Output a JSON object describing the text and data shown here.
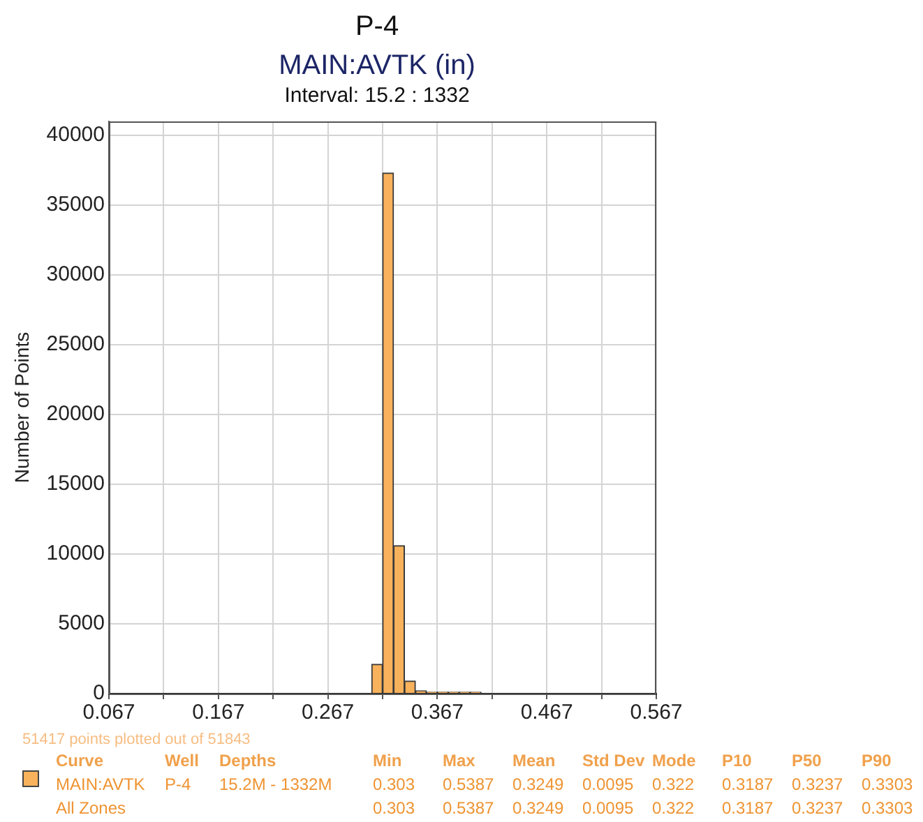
{
  "chart_data": {
    "type": "histogram",
    "title": "P-4",
    "subtitle": "MAIN:AVTK (in)",
    "ylabel": "Number of Points",
    "bins": [
      0.307,
      0.317,
      0.327,
      0.337,
      0.347,
      0.357,
      0.367,
      0.377,
      0.387,
      0.397,
      0.407
    ],
    "values": [
      2100,
      37300,
      10600,
      900,
      200,
      100,
      100,
      100,
      100,
      100
    ],
    "color": "#f8b25c",
    "xlim": [
      0.067,
      0.567
    ],
    "xticks": [
      0.067,
      {
        "value": 0.117,
        "label": null
      },
      0.167,
      {
        "value": 0.217,
        "label": null
      },
      0.267,
      {
        "value": 0.317,
        "label": null
      },
      0.367,
      {
        "value": 0.417,
        "label": null
      },
      0.467,
      {
        "value": 0.517,
        "label": null
      },
      0.567
    ],
    "ylim": [
      0,
      41000
    ],
    "yticks": [
      0,
      5000,
      10000,
      15000,
      20000,
      25000,
      30000,
      35000,
      40000
    ],
    "grid": true,
    "annotations": [
      "Interval: 15.2 : 1332",
      "51417 points plotted out of 51843",
      "Curve\tWell\tDepths\tMin\tMax\tMean\tStd Dev\tMode\tP10\tP50\tP90",
      "MAIN:AVTK\tP-4\t15.2M - 1332M\t0.303\t0.5387\t0.3249\t0.0095\t0.322\t0.3187\t0.3237\t0.3303",
      "All Zones\t\t\t0.303\t0.5387\t0.3249\t0.0095\t0.322\t0.3187\t0.3237\t0.3303"
    ]
  }
}
